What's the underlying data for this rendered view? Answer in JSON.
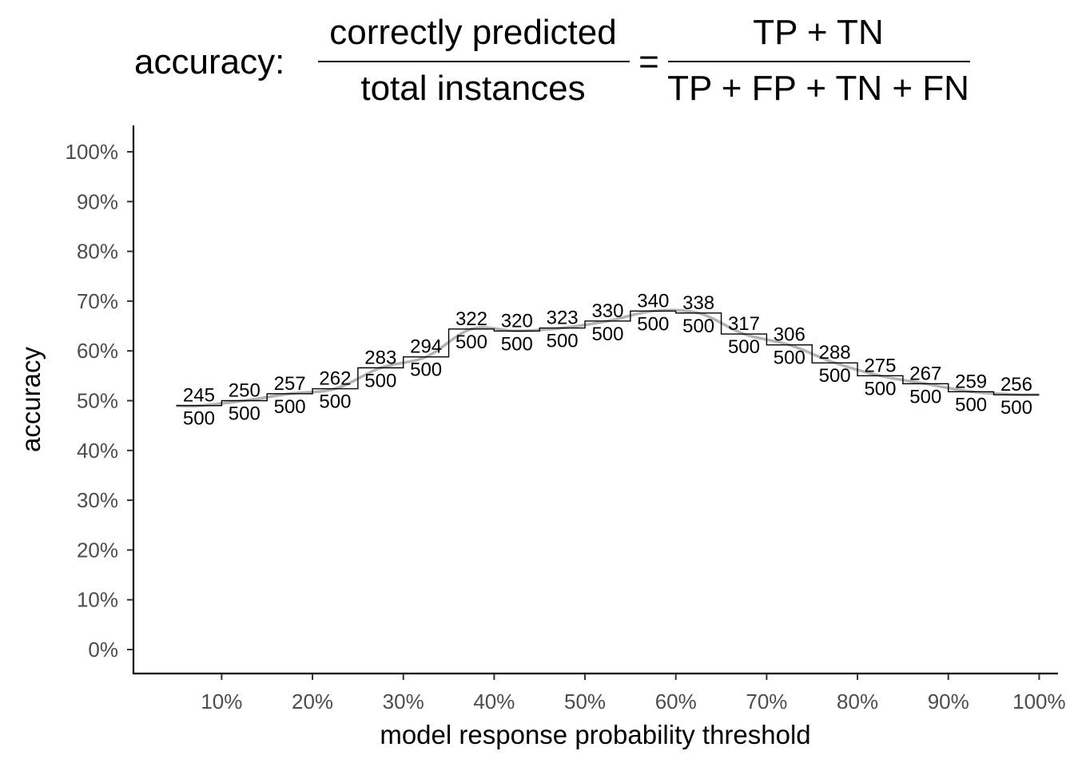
{
  "title": {
    "prefix": "accuracy:",
    "frac1_num": "correctly predicted",
    "frac1_den": "total instances",
    "equals": "=",
    "frac2_num": "TP + TN",
    "frac2_den": "TP + FP + TN + FN"
  },
  "chart_data": {
    "type": "line",
    "xlabel": "model response probability threshold",
    "ylabel": "accuracy",
    "xlim": [
      0.05,
      1.0
    ],
    "ylim": [
      0,
      1
    ],
    "x_ticks": [
      0.1,
      0.2,
      0.3,
      0.4,
      0.5,
      0.6,
      0.7,
      0.8,
      0.9,
      1.0
    ],
    "x_tick_labels": [
      "10%",
      "20%",
      "30%",
      "40%",
      "50%",
      "60%",
      "70%",
      "80%",
      "90%",
      "100%"
    ],
    "y_ticks": [
      0,
      0.1,
      0.2,
      0.3,
      0.4,
      0.5,
      0.6,
      0.7,
      0.8,
      0.9,
      1.0
    ],
    "y_tick_labels": [
      "0%",
      "10%",
      "20%",
      "30%",
      "40%",
      "50%",
      "60%",
      "70%",
      "80%",
      "90%",
      "100%"
    ],
    "grid": false,
    "series": [
      {
        "style": "step",
        "x": [
          0.05,
          0.1,
          0.15,
          0.2,
          0.25,
          0.3,
          0.35,
          0.4,
          0.45,
          0.5,
          0.55,
          0.6,
          0.65,
          0.7,
          0.75,
          0.8,
          0.85,
          0.9,
          0.95
        ],
        "correct": [
          245,
          250,
          257,
          262,
          283,
          294,
          322,
          320,
          323,
          330,
          340,
          338,
          317,
          306,
          288,
          275,
          267,
          259,
          256
        ],
        "total": [
          500,
          500,
          500,
          500,
          500,
          500,
          500,
          500,
          500,
          500,
          500,
          500,
          500,
          500,
          500,
          500,
          500,
          500,
          500
        ]
      },
      {
        "style": "smooth",
        "color": "#b3b3b3"
      }
    ]
  }
}
